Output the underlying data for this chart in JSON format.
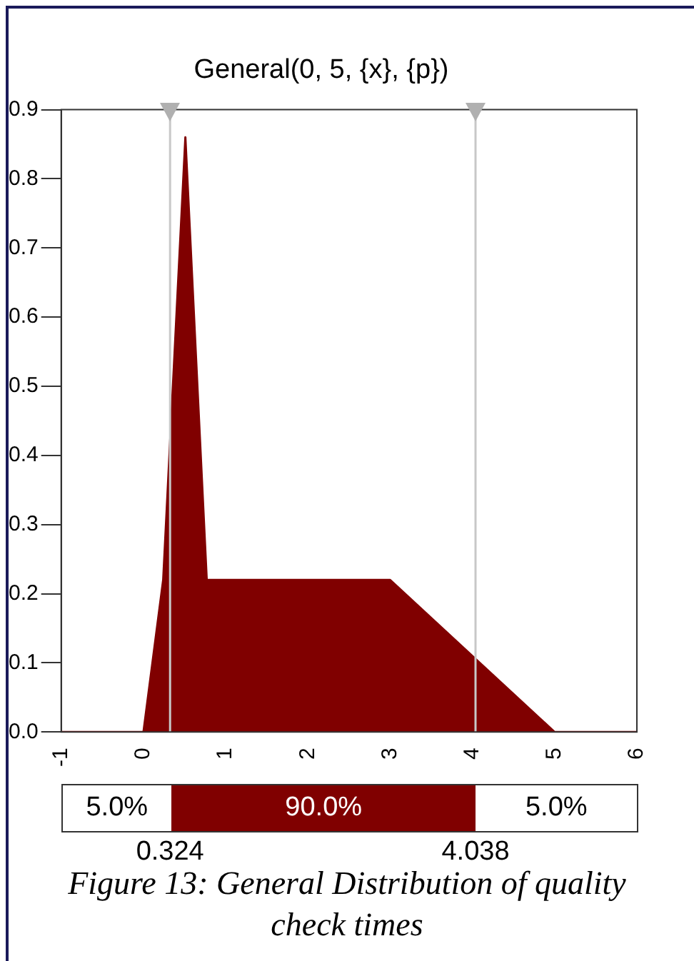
{
  "chart_data": {
    "type": "area",
    "title": "General(0, 5, {x}, {p})",
    "x": [
      -1,
      0,
      0.24,
      0.51,
      0.77,
      3,
      5,
      6
    ],
    "series": [
      {
        "color": "#800000",
        "values": [
          0,
          0,
          0.22,
          0.86,
          0.22,
          0.22,
          0,
          0
        ]
      }
    ],
    "xlim": [
      -1,
      6
    ],
    "xticks": [
      -1,
      0,
      1,
      2,
      3,
      4,
      5,
      6
    ],
    "ylim": [
      0,
      0.9
    ],
    "yticks": [
      {
        "value": 0,
        "label": "0.0"
      },
      0.1,
      0.2,
      0.3,
      0.4,
      0.5,
      0.6,
      0.7,
      0.8,
      0.9
    ],
    "grid": false,
    "legend": false,
    "marker": "none",
    "ref_lines": [
      {
        "axis": "x",
        "value": 0.324,
        "color": "#c8c8c8"
      },
      {
        "axis": "x",
        "value": 4.038,
        "color": "#c8c8c8"
      }
    ],
    "annotations": [
      "5.0%",
      "90.0%",
      "5.0%",
      "0.324",
      "4.038",
      "Figure 13: General Distribution of quality check times"
    ]
  }
}
